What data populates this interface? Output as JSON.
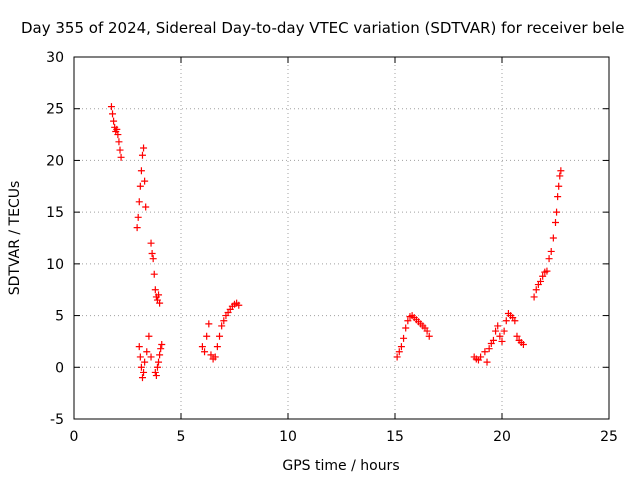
{
  "chart_data": {
    "type": "scatter",
    "title": "Day 355 of 2024, Sidereal Day-to-day VTEC variation (SDTVAR) for receiver bele",
    "xlabel": "GPS time / hours",
    "ylabel": "SDTVAR / TECUs",
    "xlim": [
      0,
      25
    ],
    "ylim": [
      -5,
      30
    ],
    "xticks": [
      "0",
      "5",
      "10",
      "15",
      "20",
      "25"
    ],
    "yticks": [
      "-5",
      "0",
      "5",
      "10",
      "15",
      "20",
      "25",
      "30"
    ],
    "grid": true,
    "marker": "+",
    "color": "#ff0000",
    "series": [
      {
        "name": "SDTVAR",
        "x": [
          1.75,
          1.8,
          1.85,
          1.9,
          1.95,
          2.0,
          2.05,
          2.1,
          2.15,
          2.2,
          2.95,
          3.0,
          3.05,
          3.1,
          3.15,
          3.2,
          3.25,
          3.3,
          3.35,
          3.6,
          3.65,
          3.7,
          3.75,
          3.8,
          3.85,
          3.9,
          3.95,
          4.0,
          3.05,
          3.1,
          3.15,
          3.2,
          3.25,
          3.3,
          3.4,
          3.5,
          3.6,
          3.8,
          3.85,
          3.9,
          3.95,
          4.0,
          4.05,
          4.1,
          6.0,
          6.1,
          6.2,
          6.3,
          6.4,
          6.5,
          6.6,
          6.7,
          6.8,
          6.9,
          7.0,
          7.1,
          7.2,
          7.3,
          7.4,
          7.5,
          7.6,
          7.7,
          15.1,
          15.2,
          15.3,
          15.4,
          15.5,
          15.6,
          15.7,
          15.8,
          15.9,
          16.0,
          16.1,
          16.2,
          16.3,
          16.4,
          16.5,
          16.6,
          18.7,
          18.8,
          18.9,
          19.0,
          19.2,
          19.3,
          19.4,
          19.5,
          19.6,
          19.7,
          19.8,
          19.9,
          20.0,
          20.1,
          20.2,
          20.3,
          20.4,
          20.5,
          20.6,
          20.7,
          20.8,
          20.9,
          21.0,
          21.5,
          21.6,
          21.7,
          21.8,
          21.9,
          22.0,
          22.1,
          22.2,
          22.3,
          22.4,
          22.5,
          22.55,
          22.6,
          22.65,
          22.7,
          22.75
        ],
        "y": [
          25.2,
          24.5,
          23.8,
          23.2,
          22.8,
          23.0,
          22.5,
          21.8,
          21.0,
          20.3,
          13.5,
          14.5,
          16.0,
          17.5,
          19.0,
          20.5,
          21.2,
          18.0,
          15.5,
          12.0,
          11.0,
          10.5,
          9.0,
          7.5,
          6.8,
          6.5,
          7.0,
          6.2,
          2.0,
          1.0,
          0.0,
          -1.0,
          -0.5,
          0.5,
          1.5,
          3.0,
          1.0,
          -0.5,
          -0.8,
          0.0,
          0.5,
          1.2,
          1.8,
          2.2,
          2.0,
          1.5,
          3.0,
          4.2,
          1.2,
          0.8,
          1.0,
          2.0,
          3.0,
          4.0,
          4.5,
          5.0,
          5.3,
          5.6,
          5.9,
          6.1,
          6.2,
          6.0,
          1.0,
          1.5,
          2.0,
          2.8,
          3.8,
          4.5,
          4.9,
          5.0,
          4.8,
          4.6,
          4.4,
          4.2,
          4.0,
          3.8,
          3.5,
          3.0,
          1.0,
          0.8,
          0.7,
          1.0,
          1.5,
          0.5,
          1.8,
          2.3,
          2.6,
          3.5,
          4.0,
          3.0,
          2.5,
          3.5,
          4.5,
          5.2,
          5.0,
          4.8,
          4.5,
          3.0,
          2.6,
          2.4,
          2.2,
          6.8,
          7.5,
          8.0,
          8.3,
          8.8,
          9.2,
          9.3,
          10.5,
          11.2,
          12.5,
          14.0,
          15.0,
          16.5,
          17.5,
          18.5,
          19.0
        ]
      }
    ]
  }
}
